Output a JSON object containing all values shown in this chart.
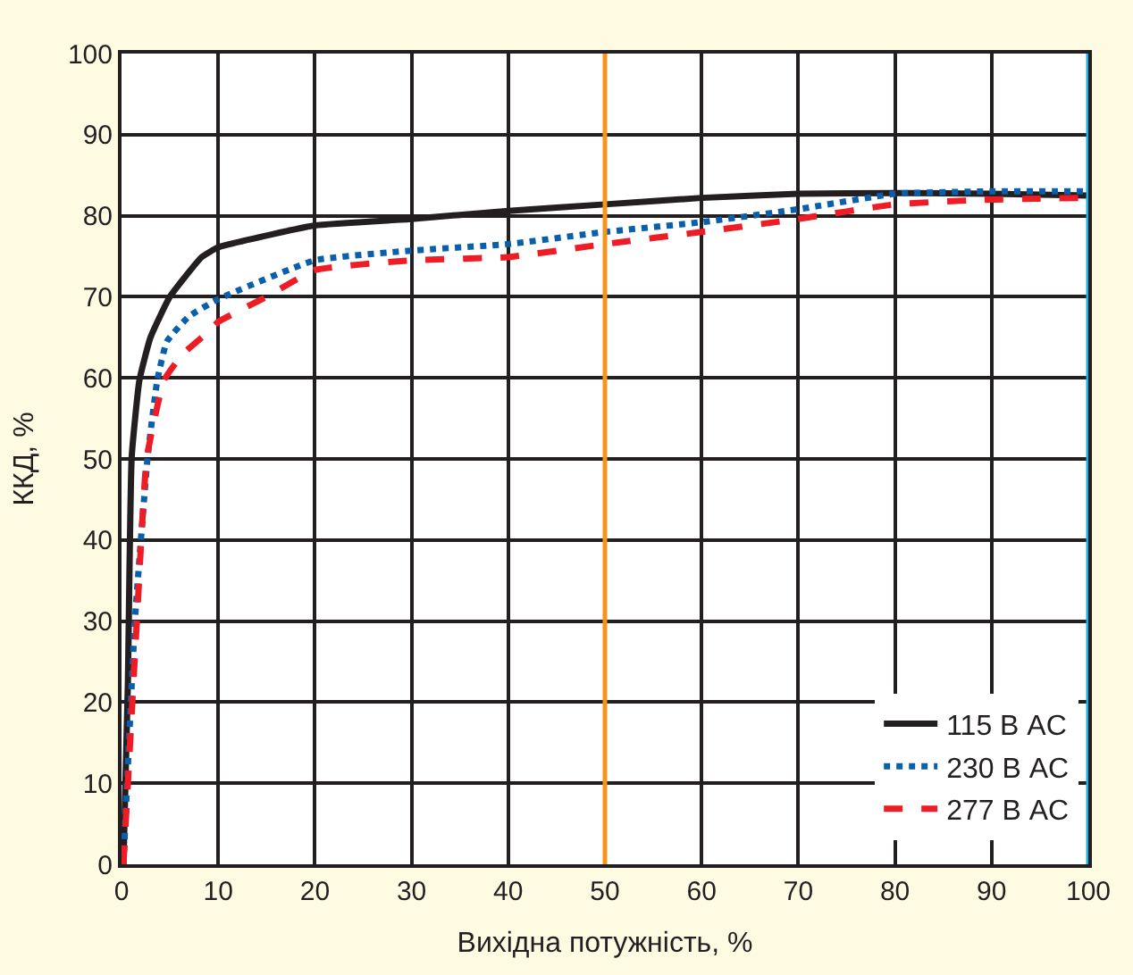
{
  "chart_data": {
    "type": "line",
    "xlabel": "Вихідна потужність, %",
    "ylabel": "ККД, %",
    "xlim": [
      0,
      100
    ],
    "xticks": [
      0,
      10,
      20,
      30,
      40,
      50,
      60,
      70,
      80,
      90,
      100
    ],
    "ylim": [
      0,
      100
    ],
    "yticks": [
      0,
      10,
      20,
      30,
      40,
      50,
      60,
      70,
      80,
      90,
      100
    ],
    "grid": true,
    "legend": "bottom right",
    "marker": "none",
    "series": [
      {
        "name": "115 В AC",
        "color": "#231f20",
        "line_style": "solid",
        "x": [
          0.2,
          0.66,
          1.05,
          1.85,
          3,
          5,
          8.3,
          10,
          20,
          30,
          40,
          50,
          60,
          70,
          80,
          90,
          100
        ],
        "values": [
          0,
          22.4,
          50.2,
          59.7,
          65,
          70,
          74.9,
          76.1,
          78.8,
          79.6,
          80.6,
          81.4,
          82.2,
          82.7,
          82.8,
          82.7,
          82.5
        ]
      },
      {
        "name": "230 В AC",
        "color": "#0a5fad",
        "line_style": "dotted",
        "x": [
          0.2,
          1.4,
          2.7,
          3.7,
          4.7,
          7,
          10,
          20,
          30,
          40,
          50,
          60,
          70,
          80,
          90,
          100
        ],
        "values": [
          0,
          30.3,
          50.2,
          59.7,
          64.5,
          67.6,
          69.7,
          74.5,
          75.7,
          76.5,
          78,
          79.2,
          80.8,
          82.7,
          83,
          83
        ]
      },
      {
        "name": "277 В AC",
        "color": "#ee1c25",
        "line_style": "dashed",
        "x": [
          0.2,
          1.6,
          2.6,
          4.4,
          6.3,
          9,
          10,
          15,
          20,
          30,
          40,
          50,
          60,
          70,
          80,
          90,
          100
        ],
        "values": [
          0,
          30.3,
          50,
          59.7,
          62.9,
          65.7,
          66.9,
          70,
          73.3,
          74.5,
          74.9,
          76.5,
          78,
          79.6,
          81.4,
          82,
          82.2
        ]
      }
    ],
    "ref_lines": [
      {
        "axis": "x",
        "value": 50,
        "color": "#f7941d"
      },
      {
        "axis": "x",
        "value": 100,
        "color": "#1ab0e8"
      }
    ]
  }
}
